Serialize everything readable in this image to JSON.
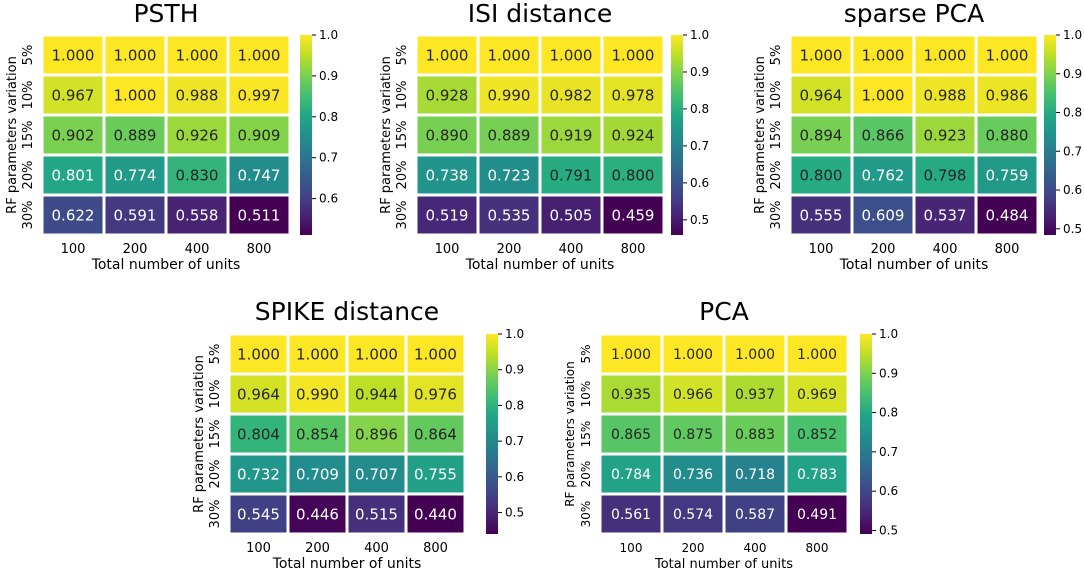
{
  "chart_data": [
    {
      "type": "heatmap",
      "title": "PSTH",
      "xlabel": "Total number of units",
      "ylabel": "RF parameters variation",
      "x_categories": [
        "100",
        "200",
        "400",
        "800"
      ],
      "y_categories": [
        "5%",
        "10%",
        "15%",
        "20%",
        "30%"
      ],
      "values": [
        [
          1.0,
          1.0,
          1.0,
          1.0
        ],
        [
          0.967,
          1.0,
          0.988,
          0.997
        ],
        [
          0.902,
          0.889,
          0.926,
          0.909
        ],
        [
          0.801,
          0.774,
          0.83,
          0.747
        ],
        [
          0.622,
          0.591,
          0.558,
          0.511
        ]
      ],
      "cell_labels": [
        [
          "1.000",
          "1.000",
          "1.000",
          "1.000"
        ],
        [
          "0.967",
          "1.000",
          "0.988",
          "0.997"
        ],
        [
          "0.902",
          "0.889",
          "0.926",
          "0.909"
        ],
        [
          "0.801",
          "0.774",
          "0.830",
          "0.747"
        ],
        [
          "0.622",
          "0.591",
          "0.558",
          "0.511"
        ]
      ],
      "colorbar": {
        "vmin": 0.511,
        "vmax": 1.0,
        "ticks": [
          1.0,
          0.9,
          0.8,
          0.7,
          0.6
        ],
        "tick_labels": [
          "1.0",
          "0.9",
          "0.8",
          "0.7",
          "0.6"
        ]
      },
      "colormap": "viridis"
    },
    {
      "type": "heatmap",
      "title": "ISI distance",
      "xlabel": "Total number of units",
      "ylabel": "RF parameters variation",
      "x_categories": [
        "100",
        "200",
        "400",
        "800"
      ],
      "y_categories": [
        "5%",
        "10%",
        "15%",
        "20%",
        "30%"
      ],
      "values": [
        [
          1.0,
          1.0,
          1.0,
          1.0
        ],
        [
          0.928,
          0.99,
          0.982,
          0.978
        ],
        [
          0.89,
          0.889,
          0.919,
          0.924
        ],
        [
          0.738,
          0.723,
          0.791,
          0.8
        ],
        [
          0.519,
          0.535,
          0.505,
          0.459
        ]
      ],
      "cell_labels": [
        [
          "1.000",
          "1.000",
          "1.000",
          "1.000"
        ],
        [
          "0.928",
          "0.990",
          "0.982",
          "0.978"
        ],
        [
          "0.890",
          "0.889",
          "0.919",
          "0.924"
        ],
        [
          "0.738",
          "0.723",
          "0.791",
          "0.800"
        ],
        [
          "0.519",
          "0.535",
          "0.505",
          "0.459"
        ]
      ],
      "colorbar": {
        "vmin": 0.459,
        "vmax": 1.0,
        "ticks": [
          1.0,
          0.9,
          0.8,
          0.7,
          0.6,
          0.5
        ],
        "tick_labels": [
          "1.0",
          "0.9",
          "0.8",
          "0.7",
          "0.6",
          "0.5"
        ]
      },
      "colormap": "viridis"
    },
    {
      "type": "heatmap",
      "title": "sparse PCA",
      "xlabel": "Total number of units",
      "ylabel": "RF parameters variation",
      "x_categories": [
        "100",
        "200",
        "400",
        "800"
      ],
      "y_categories": [
        "5%",
        "10%",
        "15%",
        "20%",
        "30%"
      ],
      "values": [
        [
          1.0,
          1.0,
          1.0,
          1.0
        ],
        [
          0.964,
          1.0,
          0.988,
          0.986
        ],
        [
          0.894,
          0.866,
          0.923,
          0.88
        ],
        [
          0.8,
          0.762,
          0.798,
          0.759
        ],
        [
          0.555,
          0.609,
          0.537,
          0.484
        ]
      ],
      "cell_labels": [
        [
          "1.000",
          "1.000",
          "1.000",
          "1.000"
        ],
        [
          "0.964",
          "1.000",
          "0.988",
          "0.986"
        ],
        [
          "0.894",
          "0.866",
          "0.923",
          "0.880"
        ],
        [
          "0.800",
          "0.762",
          "0.798",
          "0.759"
        ],
        [
          "0.555",
          "0.609",
          "0.537",
          "0.484"
        ]
      ],
      "colorbar": {
        "vmin": 0.484,
        "vmax": 1.0,
        "ticks": [
          1.0,
          0.9,
          0.8,
          0.7,
          0.6,
          0.5
        ],
        "tick_labels": [
          "1.0",
          "0.9",
          "0.8",
          "0.7",
          "0.6",
          "0.5"
        ]
      },
      "colormap": "viridis"
    },
    {
      "type": "heatmap",
      "title": "SPIKE distance",
      "xlabel": "Total number of units",
      "ylabel": "RF parameters variation",
      "x_categories": [
        "100",
        "200",
        "400",
        "800"
      ],
      "y_categories": [
        "5%",
        "10%",
        "15%",
        "20%",
        "30%"
      ],
      "values": [
        [
          1.0,
          1.0,
          1.0,
          1.0
        ],
        [
          0.964,
          0.99,
          0.944,
          0.976
        ],
        [
          0.804,
          0.854,
          0.896,
          0.864
        ],
        [
          0.732,
          0.709,
          0.707,
          0.755
        ],
        [
          0.545,
          0.446,
          0.515,
          0.44
        ]
      ],
      "cell_labels": [
        [
          "1.000",
          "1.000",
          "1.000",
          "1.000"
        ],
        [
          "0.964",
          "0.990",
          "0.944",
          "0.976"
        ],
        [
          "0.804",
          "0.854",
          "0.896",
          "0.864"
        ],
        [
          "0.732",
          "0.709",
          "0.707",
          "0.755"
        ],
        [
          "0.545",
          "0.446",
          "0.515",
          "0.440"
        ]
      ],
      "colorbar": {
        "vmin": 0.44,
        "vmax": 1.0,
        "ticks": [
          1.0,
          0.9,
          0.8,
          0.7,
          0.6,
          0.5
        ],
        "tick_labels": [
          "1.0",
          "0.9",
          "0.8",
          "0.7",
          "0.6",
          "0.5"
        ]
      },
      "colormap": "viridis"
    },
    {
      "type": "heatmap",
      "title": "PCA",
      "xlabel": "Total number of units",
      "ylabel": "RF parameters variation",
      "x_categories": [
        "100",
        "200",
        "400",
        "800"
      ],
      "y_categories": [
        "5%",
        "10%",
        "15%",
        "20%",
        "30%"
      ],
      "values": [
        [
          1.0,
          1.0,
          1.0,
          1.0
        ],
        [
          0.935,
          0.966,
          0.937,
          0.969
        ],
        [
          0.865,
          0.875,
          0.883,
          0.852
        ],
        [
          0.784,
          0.736,
          0.718,
          0.783
        ],
        [
          0.561,
          0.574,
          0.587,
          0.491
        ]
      ],
      "cell_labels": [
        [
          "1.000",
          "1.000",
          "1.000",
          "1.000"
        ],
        [
          "0.935",
          "0.966",
          "0.937",
          "0.969"
        ],
        [
          "0.865",
          "0.875",
          "0.883",
          "0.852"
        ],
        [
          "0.784",
          "0.736",
          "0.718",
          "0.783"
        ],
        [
          "0.561",
          "0.574",
          "0.587",
          "0.491"
        ]
      ],
      "colorbar": {
        "vmin": 0.491,
        "vmax": 1.0,
        "ticks": [
          1.0,
          0.9,
          0.8,
          0.7,
          0.6,
          0.5
        ],
        "tick_labels": [
          "1.0",
          "0.9",
          "0.8",
          "0.7",
          "0.6",
          "0.5"
        ]
      },
      "colormap": "viridis"
    }
  ]
}
